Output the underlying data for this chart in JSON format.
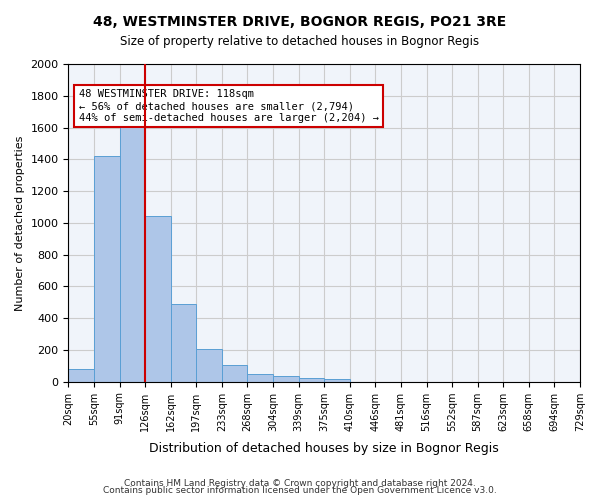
{
  "title1": "48, WESTMINSTER DRIVE, BOGNOR REGIS, PO21 3RE",
  "title2": "Size of property relative to detached houses in Bognor Regis",
  "xlabel": "Distribution of detached houses by size in Bognor Regis",
  "ylabel": "Number of detached properties",
  "bar_values": [
    80,
    1420,
    1610,
    1045,
    490,
    205,
    105,
    48,
    35,
    22,
    18,
    0,
    0,
    0,
    0,
    0,
    0,
    0,
    0,
    0
  ],
  "bin_labels": [
    "20sqm",
    "55sqm",
    "91sqm",
    "126sqm",
    "162sqm",
    "197sqm",
    "233sqm",
    "268sqm",
    "304sqm",
    "339sqm",
    "375sqm",
    "410sqm",
    "446sqm",
    "481sqm",
    "516sqm",
    "552sqm",
    "587sqm",
    "623sqm",
    "658sqm",
    "694sqm",
    "729sqm"
  ],
  "bar_color": "#aec6e8",
  "bar_edge_color": "#5a9fd4",
  "vline_x": 3,
  "vline_color": "#cc0000",
  "annotation_text": "48 WESTMINSTER DRIVE: 118sqm\n← 56% of detached houses are smaller (2,794)\n44% of semi-detached houses are larger (2,204) →",
  "annotation_box_color": "#ffffff",
  "annotation_box_edge": "#cc0000",
  "ylim": [
    0,
    2000
  ],
  "yticks": [
    0,
    200,
    400,
    600,
    800,
    1000,
    1200,
    1400,
    1600,
    1800,
    2000
  ],
  "grid_color": "#cccccc",
  "bg_color": "#f0f4fa",
  "footer1": "Contains HM Land Registry data © Crown copyright and database right 2024.",
  "footer2": "Contains public sector information licensed under the Open Government Licence v3.0."
}
